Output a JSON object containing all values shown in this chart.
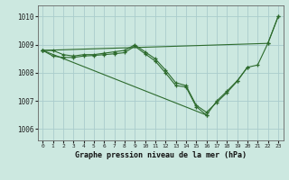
{
  "background_color": "#cce8e0",
  "grid_color": "#aacccc",
  "line_color": "#2d6b2d",
  "title": "Graphe pression niveau de la mer (hPa)",
  "xlim": [
    -0.5,
    23.5
  ],
  "ylim": [
    1005.6,
    1010.4
  ],
  "yticks": [
    1006,
    1007,
    1008,
    1009,
    1010
  ],
  "xticks": [
    0,
    1,
    2,
    3,
    4,
    5,
    6,
    7,
    8,
    9,
    10,
    11,
    12,
    13,
    14,
    15,
    16,
    17,
    18,
    19,
    20,
    21,
    22,
    23
  ],
  "series": [
    {
      "x": [
        0,
        1,
        2,
        3,
        4,
        5,
        6,
        7,
        8,
        9,
        10,
        11,
        12,
        13,
        14,
        15,
        16,
        17,
        18,
        19,
        20
      ],
      "y": [
        1008.8,
        1008.8,
        1008.65,
        1008.6,
        1008.65,
        1008.65,
        1008.7,
        1008.75,
        1008.8,
        1009.0,
        1008.75,
        1008.5,
        1008.1,
        1007.65,
        1007.55,
        1006.85,
        1006.6,
        1006.95,
        1007.3,
        1007.7,
        1008.2
      ]
    },
    {
      "x": [
        0,
        22,
        23
      ],
      "y": [
        1008.8,
        1009.05,
        1010.0
      ]
    },
    {
      "x": [
        0,
        1,
        2,
        3,
        4,
        5,
        6,
        7,
        8,
        9,
        10,
        11,
        12,
        13,
        14,
        15,
        16
      ],
      "y": [
        1008.8,
        1008.6,
        1008.55,
        1008.55,
        1008.6,
        1008.62,
        1008.65,
        1008.68,
        1008.72,
        1008.95,
        1008.68,
        1008.42,
        1008.0,
        1007.55,
        1007.5,
        1006.8,
        1006.5
      ]
    },
    {
      "x": [
        0,
        16,
        17,
        18,
        19,
        20,
        21,
        22,
        23
      ],
      "y": [
        1008.8,
        1006.5,
        1007.0,
        1007.35,
        1007.72,
        1008.2,
        1008.28,
        1009.05,
        1010.0
      ]
    }
  ]
}
